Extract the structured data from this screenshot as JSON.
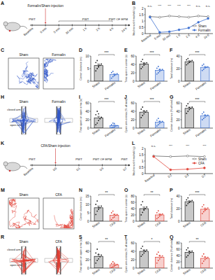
{
  "chart_data": [
    {
      "type": "line",
      "title": "B",
      "ylabel": "Mechanical threshold (g)",
      "categories": [
        "Baseline",
        "5 min",
        "30 min",
        "1 h",
        "2 h",
        "4 h",
        "24 h"
      ],
      "series": [
        {
          "name": "Sham",
          "color": "#666666",
          "marker": "open-circle",
          "values": [
            1.35,
            1.3,
            1.4,
            1.35,
            1.3,
            1.4,
            1.35
          ]
        },
        {
          "name": "Formalin",
          "color": "#3b6fd1",
          "marker": "circle",
          "values": [
            1.3,
            0.1,
            0.15,
            0.3,
            0.45,
            0.9,
            1.2
          ]
        }
      ],
      "annotations": [
        "n.s.",
        "***",
        "***",
        "***",
        "***",
        "n.s.",
        "n.s."
      ],
      "ylim": [
        0,
        2
      ],
      "yticks": [
        0,
        0.5,
        1,
        1.5,
        2
      ],
      "legend": "lower right"
    },
    {
      "type": "bar",
      "title": "D",
      "ylabel": "Center distance (m)",
      "categories": [
        "Sham",
        "Formalin"
      ],
      "values": [
        6.2,
        2.6
      ],
      "errors": [
        0.6,
        0.4
      ],
      "points": [
        [
          4.1,
          5.0,
          5.6,
          6.3,
          6.8,
          7.4,
          8.2,
          6.0
        ],
        [
          1.2,
          1.8,
          2.2,
          2.6,
          3.0,
          3.4,
          3.9,
          2.5
        ]
      ],
      "colors": [
        "#222222",
        "#3b6fd1"
      ],
      "annotation": "***",
      "ylim": [
        0,
        10
      ],
      "yticks": [
        0,
        5,
        10
      ]
    },
    {
      "type": "bar",
      "title": "E",
      "ylabel": "Time spent in center (s)",
      "categories": [
        "Sham",
        "Formalin"
      ],
      "values": [
        41,
        26
      ],
      "errors": [
        3,
        2.5
      ],
      "points": [
        [
          30,
          34,
          38,
          41,
          44,
          47,
          52,
          42
        ],
        [
          17,
          20,
          23,
          26,
          28,
          31,
          35,
          28
        ]
      ],
      "colors": [
        "#222222",
        "#3b6fd1"
      ],
      "annotation": "***",
      "ylim": [
        0,
        60
      ],
      "yticks": [
        0,
        20,
        40,
        60
      ]
    },
    {
      "type": "bar",
      "title": "F",
      "ylabel": "Total distance (m)",
      "categories": [
        "Sham",
        "Formalin"
      ],
      "values": [
        31,
        22
      ],
      "errors": [
        1.5,
        1.5
      ],
      "points": [
        [
          26,
          28,
          30,
          31,
          33,
          34,
          36,
          30
        ],
        [
          17,
          19,
          21,
          22,
          23,
          25,
          27,
          22
        ]
      ],
      "colors": [
        "#222222",
        "#3b6fd1"
      ],
      "annotation": "***",
      "ylim": [
        0,
        40
      ],
      "yticks": [
        0,
        20,
        40
      ]
    },
    {
      "type": "bar",
      "title": "I",
      "ylabel": "Time spent on open arms (s)",
      "categories": [
        "Sham",
        "Formalin"
      ],
      "values": [
        24,
        6
      ],
      "errors": [
        4,
        2
      ],
      "points": [
        [
          8,
          12,
          18,
          22,
          26,
          32,
          40,
          34
        ],
        [
          1,
          2,
          3,
          5,
          6,
          8,
          12,
          11
        ]
      ],
      "colors": [
        "#222222",
        "#3b6fd1"
      ],
      "annotation": "***",
      "ylim": [
        0,
        60
      ],
      "yticks": [
        0,
        20,
        40,
        60
      ]
    },
    {
      "type": "bar",
      "title": "J",
      "ylabel": "Open arm entries (% of total)",
      "categories": [
        "Sham",
        "Formalin"
      ],
      "values": [
        38,
        14
      ],
      "errors": [
        3,
        2.5
      ],
      "points": [
        [
          25,
          30,
          34,
          38,
          41,
          45,
          50,
          41
        ],
        [
          5,
          8,
          11,
          14,
          16,
          19,
          23,
          16
        ]
      ],
      "colors": [
        "#222222",
        "#3b6fd1"
      ],
      "annotation": "***",
      "ylim": [
        0,
        60
      ],
      "yticks": [
        0,
        20,
        40,
        60
      ]
    },
    {
      "type": "bar",
      "title": "G",
      "ylabel": "Center distance (% of total)",
      "categories": [
        "Sham",
        "Formalin"
      ],
      "values": [
        47,
        29
      ],
      "errors": [
        3,
        2.5
      ],
      "points": [
        [
          35,
          40,
          44,
          47,
          50,
          53,
          58,
          49
        ],
        [
          20,
          23,
          26,
          29,
          31,
          34,
          38,
          31
        ]
      ],
      "colors": [
        "#222222",
        "#3b6fd1"
      ],
      "annotation": "***",
      "ylim": [
        0,
        60
      ],
      "yticks": [
        0,
        20,
        40,
        60
      ]
    },
    {
      "type": "line",
      "title": "L",
      "ylabel": "Mechanical threshold (g)",
      "categories": [
        "Baseline",
        "D1",
        "D3",
        "D7"
      ],
      "series": [
        {
          "name": "Sham",
          "color": "#666666",
          "marker": "open-circle",
          "values": [
            1.4,
            1.35,
            1.4,
            1.35
          ]
        },
        {
          "name": "CFA",
          "color": "#e0453a",
          "marker": "circle",
          "values": [
            1.35,
            0.3,
            0.35,
            0.45
          ]
        }
      ],
      "annotations": [
        "n.s.",
        "***",
        "***",
        "***"
      ],
      "ylim": [
        0,
        2
      ],
      "yticks": [
        0,
        0.5,
        1,
        1.5,
        2
      ],
      "legend": "center right"
    },
    {
      "type": "bar",
      "title": "N",
      "ylabel": "Center distance (m)",
      "categories": [
        "Sham",
        "CFA"
      ],
      "values": [
        8,
        3.5
      ],
      "errors": [
        1,
        0.7
      ],
      "points": [
        [
          4,
          6,
          7,
          8,
          9,
          10,
          12,
          8
        ],
        [
          1,
          2,
          2.5,
          3.5,
          4,
          5,
          6,
          4
        ]
      ],
      "colors": [
        "#222222",
        "#e0453a"
      ],
      "annotation": "**",
      "ylim": [
        0,
        15
      ],
      "yticks": [
        0,
        5,
        10,
        15
      ]
    },
    {
      "type": "bar",
      "title": "O",
      "ylabel": "Time spent in center (s)",
      "categories": [
        "Sham",
        "CFA"
      ],
      "values": [
        40,
        20
      ],
      "errors": [
        5,
        3.5
      ],
      "points": [
        [
          20,
          28,
          35,
          40,
          45,
          52,
          62,
          38
        ],
        [
          8,
          12,
          16,
          20,
          23,
          27,
          33,
          21
        ]
      ],
      "colors": [
        "#222222",
        "#e0453a"
      ],
      "annotation": "**",
      "ylim": [
        0,
        80
      ],
      "yticks": [
        0,
        20,
        40,
        60,
        80
      ]
    },
    {
      "type": "bar",
      "title": "P",
      "ylabel": "Total distance (m)",
      "categories": [
        "Sham",
        "CFA"
      ],
      "values": [
        31,
        19
      ],
      "errors": [
        1.5,
        2
      ],
      "points": [
        [
          25,
          28,
          30,
          31,
          33,
          34,
          37,
          30
        ],
        [
          12,
          15,
          17,
          19,
          21,
          23,
          26,
          19
        ]
      ],
      "colors": [
        "#222222",
        "#e0453a"
      ],
      "annotation": "***",
      "ylim": [
        0,
        40
      ],
      "yticks": [
        0,
        20,
        40
      ]
    },
    {
      "type": "bar",
      "title": "S",
      "ylabel": "Time spent on open arms (s)",
      "categories": [
        "Sham",
        "CFA"
      ],
      "values": [
        28,
        8
      ],
      "errors": [
        4,
        2
      ],
      "points": [
        [
          12,
          18,
          22,
          27,
          31,
          36,
          45,
          33
        ],
        [
          2,
          3,
          5,
          7,
          9,
          11,
          15,
          12
        ]
      ],
      "colors": [
        "#222222",
        "#e0453a"
      ],
      "annotation": "**",
      "ylim": [
        0,
        60
      ],
      "yticks": [
        0,
        20,
        40,
        60
      ]
    },
    {
      "type": "bar",
      "title": "T",
      "ylabel": "Open arm entries (% of total)",
      "categories": [
        "Sham",
        "CFA"
      ],
      "values": [
        40,
        26
      ],
      "errors": [
        3.5,
        3.5
      ],
      "points": [
        [
          28,
          32,
          36,
          40,
          43,
          47,
          52,
          42
        ],
        [
          12,
          18,
          22,
          26,
          29,
          33,
          38,
          30
        ]
      ],
      "colors": [
        "#222222",
        "#e0453a"
      ],
      "annotation": "*",
      "ylim": [
        0,
        60
      ],
      "yticks": [
        0,
        20,
        40,
        60
      ]
    },
    {
      "type": "bar",
      "title": "Q",
      "ylabel": "Center distance (% of total)",
      "categories": [
        "Sham",
        "CFA"
      ],
      "values": [
        50,
        31
      ],
      "errors": [
        4,
        4
      ],
      "points": [
        [
          35,
          40,
          46,
          50,
          54,
          58,
          64,
          53
        ],
        [
          15,
          22,
          27,
          31,
          34,
          38,
          45,
          36
        ]
      ],
      "colors": [
        "#222222",
        "#e0453a"
      ],
      "annotation": "**",
      "ylim": [
        0,
        80
      ],
      "yticks": [
        0,
        20,
        40,
        60,
        80
      ]
    }
  ],
  "timelines": [
    {
      "title": "A",
      "injection": "Formalin/Sham injection",
      "injection_at": 1,
      "points": [
        "Baseline",
        "0 min",
        "5 min",
        "30 min",
        "1 h",
        "2 h",
        "4 h",
        "24 h"
      ],
      "tests": [
        {
          "label": "PWT",
          "from": 0,
          "to": 0
        },
        {
          "label": "PWT",
          "from": 2,
          "to": 6
        },
        {
          "label": "PWT OF EPM",
          "from": 7,
          "to": 7
        }
      ]
    },
    {
      "title": "K",
      "injection": "CFA/Sham injection",
      "injection_at": 1,
      "points": [
        "Baseline",
        "D0",
        "D1",
        "D3",
        "D7"
      ],
      "tests": [
        {
          "label": "PWT",
          "from": 0,
          "to": 0
        },
        {
          "label": "PWT",
          "from": 2,
          "to": 2
        },
        {
          "label": "PWT OF EPM",
          "from": 3,
          "to": 3
        },
        {
          "label": "PWT",
          "from": 4,
          "to": 4
        }
      ]
    }
  ],
  "trajectories": [
    {
      "title": "C",
      "type": "open-field",
      "labels": [
        "Sham",
        "Formalin"
      ],
      "color": "#2f55c8"
    },
    {
      "title": "H",
      "type": "maze",
      "labels": [
        "Sham",
        "Formalin"
      ],
      "arm_labels": [
        "closed arm",
        "open arm"
      ],
      "color": "#2f55c8"
    },
    {
      "title": "M",
      "type": "open-field",
      "labels": [
        "Sham",
        "CFA"
      ],
      "color": "#e03a2f"
    },
    {
      "title": "R",
      "type": "maze",
      "labels": [
        "Sham",
        "CFA"
      ],
      "arm_labels": [
        "closed arm",
        "open arm"
      ],
      "color": "#e03a2f"
    }
  ]
}
